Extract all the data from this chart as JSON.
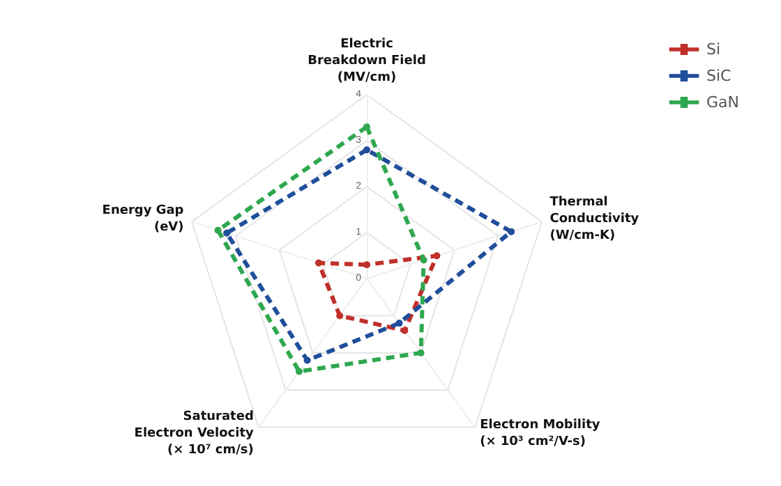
{
  "chart_data": {
    "type": "radar",
    "categories": [
      "Electric\nBreakdown Field\n(MV/cm)",
      "Thermal\nConductivity\n(W/cm-K)",
      "Electron Mobility\n(× 10³ cm²/V-s)",
      "Saturated\nElectron Velocity\n(× 10⁷ cm/s)",
      "Energy Gap\n(eV)"
    ],
    "series": [
      {
        "name": "Si",
        "color": "#c0302a",
        "values": [
          0.3,
          1.6,
          1.4,
          1.0,
          1.1
        ]
      },
      {
        "name": "SiC",
        "color": "#1f4e9a",
        "values": [
          2.8,
          3.3,
          1.2,
          2.2,
          3.2
        ]
      },
      {
        "name": "GaN",
        "color": "#2ea84f",
        "values": [
          3.3,
          1.3,
          2.0,
          2.5,
          3.4
        ]
      }
    ],
    "ylim": [
      0,
      4
    ],
    "yticks": [
      0,
      1,
      2,
      3,
      4
    ],
    "grid": true,
    "legend": "top right",
    "marker": "circle",
    "line_style": "dashed"
  }
}
